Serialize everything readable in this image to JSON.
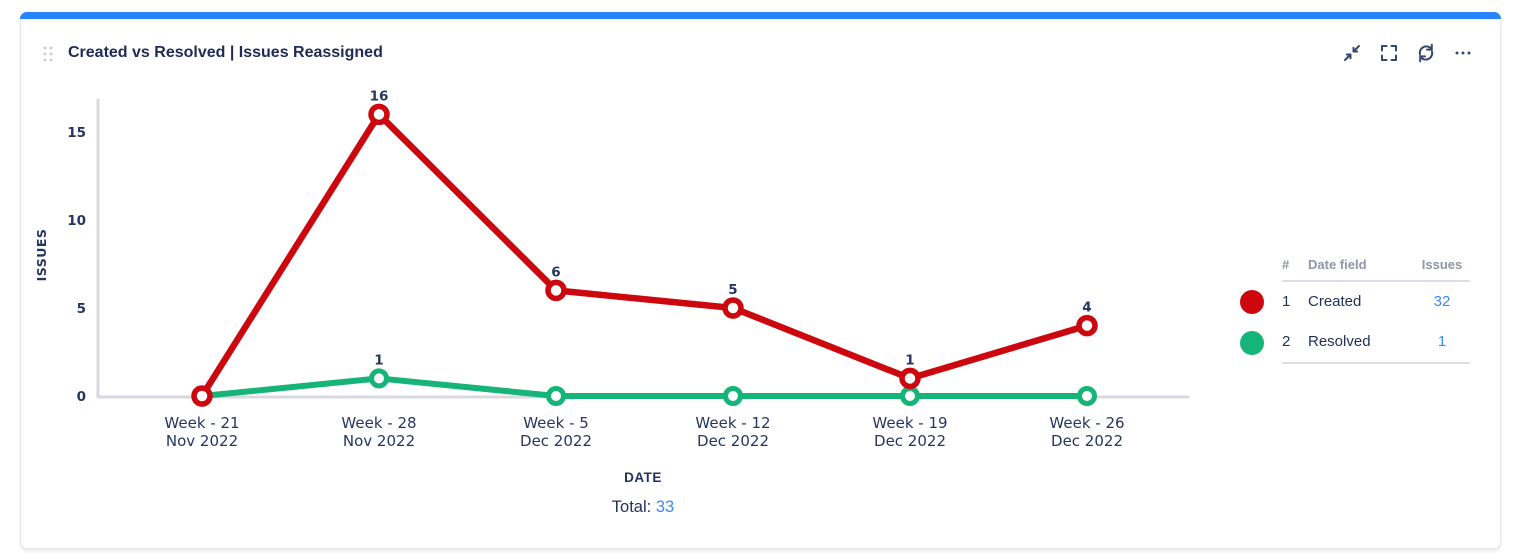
{
  "panel": {
    "title": "Created vs Resolved | Issues Reassigned",
    "toolbar_icons": [
      "minimize-icon",
      "fullscreen-icon",
      "refresh-icon",
      "more-icon"
    ],
    "drag_handle": "grip-dots"
  },
  "chart_data": {
    "type": "line",
    "title": "Created vs Resolved | Issues Reassigned",
    "xlabel": "DATE",
    "ylabel": "ISSUES",
    "ylim": [
      0,
      16
    ],
    "yticks": [
      0,
      5,
      10,
      15
    ],
    "grid": false,
    "legend_position": "right",
    "point_labels": "shown above points for non-zero values",
    "categories": [
      [
        "Week - 21",
        "Nov 2022"
      ],
      [
        "Week - 28",
        "Nov 2022"
      ],
      [
        "Week - 5",
        "Dec 2022"
      ],
      [
        "Week - 12",
        "Dec 2022"
      ],
      [
        "Week - 19",
        "Dec 2022"
      ],
      [
        "Week - 26",
        "Dec 2022"
      ]
    ],
    "series": [
      {
        "name": "Created",
        "color": "#CC070D",
        "values": [
          0,
          16,
          6,
          5,
          1,
          4
        ]
      },
      {
        "name": "Resolved",
        "color": "#16B478",
        "values": [
          0,
          1,
          0,
          0,
          0,
          0
        ]
      }
    ]
  },
  "legend": {
    "headers": [
      "#",
      "Date field",
      "Issues"
    ],
    "rows": [
      {
        "num": "1",
        "label": "Created",
        "issues": "32",
        "color": "#CC070D"
      },
      {
        "num": "2",
        "label": "Resolved",
        "issues": "1",
        "color": "#16B478"
      }
    ]
  },
  "footer": {
    "total_label": "Total:",
    "total_value": "33"
  },
  "colors": {
    "accent": "#2684FF",
    "link": "#3B88F7",
    "title_text": "#1E2B55",
    "chart_text": "#263663",
    "axis": "#D8DAE0",
    "icon": "#36486B"
  }
}
